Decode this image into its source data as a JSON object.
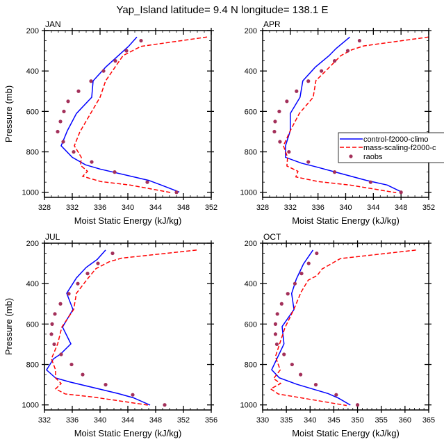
{
  "title": "Yap_Island  latitude= 9.4 N longitude= 138.1 E",
  "colors": {
    "control": "#0000ff",
    "mass_scaling": "#ff0000",
    "raobs": "#a3305a"
  },
  "legend": {
    "placement": "inside APR panel, right, clipped at page edge",
    "entries": [
      "control-f2000-climo",
      "mass-scaling-f2000-c",
      "raobs"
    ]
  },
  "chart_data": [
    {
      "type": "line",
      "panel": "JAN",
      "title": "JAN",
      "xlabel": "Moist Static Energy (kJ/kg)",
      "ylabel": "Pressure (mb)",
      "xlim": [
        328,
        352
      ],
      "xticks": [
        328,
        332,
        336,
        340,
        344,
        348,
        352
      ],
      "ylim": [
        200,
        1025
      ],
      "yticks": [
        200,
        400,
        600,
        800,
        1000
      ],
      "y_inverted": true,
      "grid": false,
      "series": [
        {
          "name": "control-f2000-climo",
          "style": "solid",
          "points": [
            [
              341.3,
              232
            ],
            [
              340.1,
              278
            ],
            [
              336.8,
              381
            ],
            [
              335.0,
              449
            ],
            [
              334.8,
              530
            ],
            [
              332.6,
              610
            ],
            [
              331.3,
              695
            ],
            [
              330.4,
              770
            ],
            [
              332.0,
              827
            ],
            [
              333.9,
              864
            ],
            [
              336.0,
              885
            ],
            [
              343.0,
              941
            ],
            [
              344.8,
              964
            ],
            [
              347.4,
              999
            ]
          ]
        },
        {
          "name": "mass-scaling-f2000-c",
          "style": "dashed",
          "points": [
            [
              351.4,
              232
            ],
            [
              341.9,
              278
            ],
            [
              339.3,
              324
            ],
            [
              336.8,
              449
            ],
            [
              336.0,
              530
            ],
            [
              333.1,
              701
            ],
            [
              332.3,
              770
            ],
            [
              333.3,
              827
            ],
            [
              333.2,
              867
            ],
            [
              334.2,
              896
            ],
            [
              333.5,
              921
            ],
            [
              336.1,
              947
            ],
            [
              340.3,
              964
            ],
            [
              346.3,
              1002
            ]
          ]
        },
        {
          "name": "raobs",
          "style": "markers",
          "points": [
            [
              341.9,
              250
            ],
            [
              339.8,
              300
            ],
            [
              338.2,
              350
            ],
            [
              336.5,
              400
            ],
            [
              334.7,
              450
            ],
            [
              332.9,
              500
            ],
            [
              331.4,
              550
            ],
            [
              330.8,
              600
            ],
            [
              330.3,
              650
            ],
            [
              329.9,
              700
            ],
            [
              330.7,
              750
            ],
            [
              332.2,
              800
            ],
            [
              334.8,
              850
            ],
            [
              338.1,
              900
            ],
            [
              342.8,
              950
            ],
            [
              347.0,
              1000
            ]
          ]
        }
      ]
    },
    {
      "type": "line",
      "panel": "APR",
      "title": "APR",
      "xlabel": "Moist Static Energy (kJ/kg)",
      "ylabel": "",
      "xlim": [
        328,
        352
      ],
      "xticks": [
        328,
        332,
        336,
        340,
        344,
        348,
        352
      ],
      "ylim": [
        200,
        1025
      ],
      "yticks": [
        200,
        400,
        600,
        800,
        1000
      ],
      "y_inverted": true,
      "grid": false,
      "series": [
        {
          "name": "control-f2000-climo",
          "style": "solid",
          "points": [
            [
              340.6,
              232
            ],
            [
              338.6,
              289
            ],
            [
              337.6,
              324
            ],
            [
              335.6,
              381
            ],
            [
              333.8,
              449
            ],
            [
              333.4,
              530
            ],
            [
              332.0,
              610
            ],
            [
              332.0,
              695
            ],
            [
              331.3,
              770
            ],
            [
              331.3,
              827
            ],
            [
              333.6,
              856
            ],
            [
              335.6,
              873
            ],
            [
              338.6,
              901
            ],
            [
              343.0,
              941
            ],
            [
              346.0,
              964
            ],
            [
              348.1,
              999
            ]
          ]
        },
        {
          "name": "mass-scaling-f2000-c",
          "style": "dashed",
          "points": [
            [
              352.0,
              232
            ],
            [
              342.6,
              276
            ],
            [
              340.9,
              295
            ],
            [
              339.3,
              324
            ],
            [
              337.0,
              404
            ],
            [
              335.7,
              447
            ],
            [
              335.3,
              530
            ],
            [
              333.3,
              610
            ],
            [
              332.0,
              695
            ],
            [
              331.0,
              770
            ],
            [
              331.6,
              827
            ],
            [
              331.5,
              870
            ],
            [
              333.1,
              896
            ],
            [
              332.8,
              924
            ],
            [
              336.0,
              947
            ],
            [
              340.6,
              964
            ],
            [
              347.3,
              1002
            ]
          ]
        },
        {
          "name": "raobs",
          "style": "markers",
          "points": [
            [
              342.0,
              250
            ],
            [
              340.3,
              300
            ],
            [
              338.4,
              350
            ],
            [
              336.5,
              400
            ],
            [
              334.6,
              450
            ],
            [
              332.9,
              500
            ],
            [
              331.5,
              550
            ],
            [
              330.4,
              600
            ],
            [
              329.8,
              650
            ],
            [
              329.7,
              700
            ],
            [
              330.5,
              750
            ],
            [
              331.8,
              800
            ],
            [
              334.6,
              850
            ],
            [
              338.4,
              900
            ],
            [
              343.6,
              950
            ],
            [
              348.0,
              1000
            ]
          ]
        }
      ]
    },
    {
      "type": "line",
      "panel": "JUL",
      "title": "JUL",
      "xlabel": "Moist Static Energy (kJ/kg)",
      "ylabel": "Pressure (mb)",
      "xlim": [
        332,
        356
      ],
      "xticks": [
        332,
        336,
        340,
        344,
        348,
        352,
        356
      ],
      "ylim": [
        200,
        1025
      ],
      "yticks": [
        200,
        400,
        600,
        800,
        1000
      ],
      "y_inverted": true,
      "grid": false,
      "series": [
        {
          "name": "control-f2000-climo",
          "style": "solid",
          "points": [
            [
              340.8,
              234
            ],
            [
              339.6,
              280
            ],
            [
              338.0,
              320
            ],
            [
              336.6,
              372
            ],
            [
              335.2,
              448
            ],
            [
              336.1,
              528
            ],
            [
              334.6,
              615
            ],
            [
              335.8,
              698
            ],
            [
              334.3,
              749
            ],
            [
              333.3,
              772
            ],
            [
              332.3,
              827
            ],
            [
              333.6,
              867
            ],
            [
              335.6,
              886
            ],
            [
              342.6,
              944
            ],
            [
              344.8,
              965
            ],
            [
              347.2,
              1001
            ]
          ]
        },
        {
          "name": "mass-scaling-f2000-c",
          "style": "dashed",
          "points": [
            [
              353.9,
              234
            ],
            [
              343.1,
              274
            ],
            [
              341.3,
              292
            ],
            [
              339.4,
              326
            ],
            [
              338.3,
              372
            ],
            [
              336.6,
              448
            ],
            [
              336.2,
              528
            ],
            [
              334.5,
              615
            ],
            [
              333.9,
              698
            ],
            [
              333.0,
              772
            ],
            [
              333.6,
              827
            ],
            [
              333.6,
              867
            ],
            [
              334.4,
              894
            ],
            [
              333.6,
              921
            ],
            [
              335.0,
              946
            ],
            [
              339.0,
              961
            ],
            [
              346.9,
              1001
            ]
          ]
        },
        {
          "name": "raobs",
          "style": "markers",
          "points": [
            [
              341.8,
              250
            ],
            [
              339.7,
              300
            ],
            [
              338.2,
              350
            ],
            [
              336.8,
              400
            ],
            [
              335.5,
              450
            ],
            [
              334.3,
              500
            ],
            [
              333.5,
              550
            ],
            [
              333.1,
              600
            ],
            [
              333.0,
              650
            ],
            [
              333.4,
              700
            ],
            [
              334.4,
              750
            ],
            [
              335.9,
              800
            ],
            [
              337.5,
              850
            ],
            [
              340.8,
              900
            ],
            [
              344.7,
              950
            ],
            [
              349.3,
              1000
            ]
          ]
        }
      ]
    },
    {
      "type": "line",
      "panel": "OCT",
      "title": "OCT",
      "xlabel": "Moist Static Energy (kJ/kg)",
      "ylabel": "",
      "xlim": [
        330,
        365
      ],
      "xticks": [
        330,
        335,
        340,
        345,
        350,
        355,
        360,
        365
      ],
      "ylim": [
        200,
        1025
      ],
      "yticks": [
        200,
        400,
        600,
        800,
        1000
      ],
      "y_inverted": true,
      "grid": false,
      "series": [
        {
          "name": "control-f2000-climo",
          "style": "solid",
          "points": [
            [
              340.6,
              234
            ],
            [
              338.6,
              303
            ],
            [
              337.1,
              377
            ],
            [
              336.1,
              449
            ],
            [
              336.6,
              528
            ],
            [
              334.1,
              612
            ],
            [
              334.5,
              698
            ],
            [
              331.9,
              826
            ],
            [
              333.5,
              866
            ],
            [
              337.2,
              898
            ],
            [
              343.8,
              944
            ],
            [
              346.0,
              967
            ],
            [
              348.5,
              1001
            ]
          ]
        },
        {
          "name": "mass-scaling-f2000-c",
          "style": "dashed",
          "points": [
            [
              362.3,
              234
            ],
            [
              346.4,
              276
            ],
            [
              342.5,
              328
            ],
            [
              341.5,
              360
            ],
            [
              339.6,
              383
            ],
            [
              338.1,
              442
            ],
            [
              336.6,
              526
            ],
            [
              334.7,
              618
            ],
            [
              332.7,
              761
            ],
            [
              333.7,
              827
            ],
            [
              332.3,
              870
            ],
            [
              333.8,
              894
            ],
            [
              331.7,
              921
            ],
            [
              333.3,
              946
            ],
            [
              338.6,
              967
            ],
            [
              347.7,
              1003
            ]
          ]
        },
        {
          "name": "raobs",
          "style": "markers",
          "points": [
            [
              341.4,
              250
            ],
            [
              339.7,
              300
            ],
            [
              338.2,
              350
            ],
            [
              336.8,
              400
            ],
            [
              335.3,
              450
            ],
            [
              334.0,
              500
            ],
            [
              333.1,
              550
            ],
            [
              332.7,
              600
            ],
            [
              332.7,
              650
            ],
            [
              333.0,
              700
            ],
            [
              334.5,
              750
            ],
            [
              336.2,
              800
            ],
            [
              338.0,
              850
            ],
            [
              341.2,
              900
            ],
            [
              345.5,
              950
            ],
            [
              350.0,
              1000
            ]
          ]
        }
      ]
    }
  ]
}
